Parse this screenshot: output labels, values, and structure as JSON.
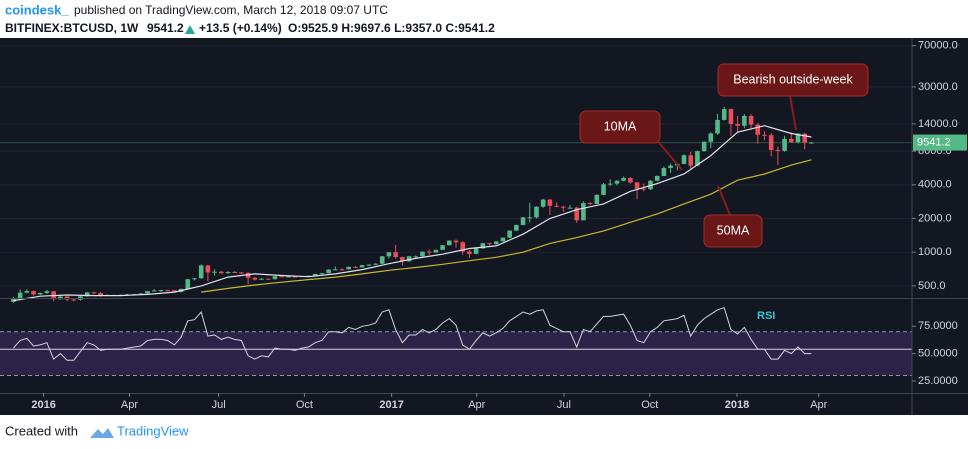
{
  "header": {
    "brand": "coindesk_",
    "published": "published on TradingView.com, March 12, 2018 09:07 UTC",
    "symbol": "BITFINEX:BTCUSD, 1W",
    "price": "9541.2",
    "change": "+13.5 (+0.14%)",
    "ohlc": "O:9525.9 H:9697.6 L:9357.0 C:9541.2"
  },
  "footer": {
    "created": "Created with",
    "brand": "TradingView"
  },
  "chart_data": [
    {
      "type": "candlestick",
      "ylog": true,
      "up_color": "#53b987",
      "down_color": "#eb4d5c",
      "xlim": [
        -2,
        134
      ],
      "ylim": [
        390,
        82000
      ],
      "yticks": [
        {
          "value": 500,
          "label": "500.0"
        },
        {
          "value": 1000,
          "label": "1000.0"
        },
        {
          "value": 2000,
          "label": "2000.0"
        },
        {
          "value": 4000,
          "label": "4000.0"
        },
        {
          "value": 8000,
          "label": "8000.0"
        },
        {
          "value": 14000,
          "label": "14000.0"
        },
        {
          "value": 30000,
          "label": "30000.0"
        },
        {
          "value": 70000,
          "label": "70000.0"
        }
      ],
      "grid": true,
      "price_label": {
        "value": 9541.2,
        "label": "9541.2"
      },
      "annotations": [
        "Bearish outside-week"
      ],
      "candles": [
        [
          360,
          400,
          355,
          390
        ],
        [
          390,
          465,
          385,
          435
        ],
        [
          435,
          465,
          430,
          450
        ],
        [
          450,
          455,
          410,
          420
        ],
        [
          420,
          436,
          415,
          432
        ],
        [
          432,
          460,
          425,
          448
        ],
        [
          448,
          450,
          365,
          380
        ],
        [
          380,
          410,
          376,
          402
        ],
        [
          402,
          405,
          365,
          378
        ],
        [
          378,
          390,
          365,
          376
        ],
        [
          376,
          408,
          370,
          404
        ],
        [
          404,
          442,
          400,
          438
        ],
        [
          438,
          444,
          420,
          432
        ],
        [
          432,
          440,
          400,
          412
        ],
        [
          412,
          420,
          405,
          415
        ],
        [
          415,
          418,
          410,
          415
        ],
        [
          415,
          420,
          411,
          416
        ],
        [
          416,
          425,
          412,
          420
        ],
        [
          420,
          426,
          415,
          422
        ],
        [
          422,
          430,
          418,
          428
        ],
        [
          428,
          452,
          425,
          450
        ],
        [
          450,
          468,
          445,
          455
        ],
        [
          455,
          462,
          442,
          459
        ],
        [
          459,
          462,
          448,
          457
        ],
        [
          457,
          460,
          436,
          441
        ],
        [
          441,
          475,
          438,
          470
        ],
        [
          470,
          578,
          468,
          574
        ],
        [
          574,
          590,
          560,
          585
        ],
        [
          585,
          780,
          580,
          762
        ],
        [
          762,
          770,
          550,
          660
        ],
        [
          660,
          705,
          620,
          670
        ],
        [
          670,
          682,
          640,
          650
        ],
        [
          650,
          676,
          645,
          666
        ],
        [
          666,
          680,
          650,
          660
        ],
        [
          660,
          665,
          640,
          655
        ],
        [
          655,
          660,
          520,
          590
        ],
        [
          590,
          600,
          560,
          570
        ],
        [
          570,
          586,
          565,
          580
        ],
        [
          580,
          585,
          570,
          575
        ],
        [
          575,
          615,
          570,
          610
        ],
        [
          610,
          612,
          600,
          607
        ],
        [
          607,
          612,
          600,
          608
        ],
        [
          608,
          612,
          596,
          603
        ],
        [
          603,
          615,
          600,
          612
        ],
        [
          612,
          620,
          608,
          617
        ],
        [
          617,
          642,
          612,
          640
        ],
        [
          640,
          652,
          630,
          650
        ],
        [
          650,
          705,
          645,
          700
        ],
        [
          700,
          745,
          690,
          703
        ],
        [
          703,
          720,
          690,
          702
        ],
        [
          702,
          745,
          700,
          740
        ],
        [
          740,
          752,
          725,
          733
        ],
        [
          733,
          770,
          730,
          766
        ],
        [
          766,
          780,
          755,
          775
        ],
        [
          775,
          795,
          770,
          790
        ],
        [
          790,
          925,
          785,
          920
        ],
        [
          920,
          1000,
          880,
          1000
        ],
        [
          1000,
          1160,
          880,
          905
        ],
        [
          905,
          910,
          760,
          830
        ],
        [
          830,
          930,
          820,
          920
        ],
        [
          920,
          935,
          880,
          920
        ],
        [
          920,
          1015,
          915,
          1012
        ],
        [
          1012,
          1060,
          940,
          995
        ],
        [
          995,
          1055,
          990,
          1050
        ],
        [
          1050,
          1160,
          1045,
          1155
        ],
        [
          1155,
          1280,
          1150,
          1270
        ],
        [
          1270,
          1300,
          1100,
          1230
        ],
        [
          1230,
          1250,
          950,
          1015
        ],
        [
          1015,
          1050,
          890,
          967
        ],
        [
          967,
          1090,
          960,
          1080
        ],
        [
          1080,
          1210,
          1075,
          1205
        ],
        [
          1205,
          1215,
          1150,
          1180
        ],
        [
          1180,
          1255,
          1170,
          1250
        ],
        [
          1250,
          1355,
          1245,
          1350
        ],
        [
          1350,
          1570,
          1340,
          1560
        ],
        [
          1560,
          1760,
          1550,
          1750
        ],
        [
          1750,
          2070,
          1740,
          2050
        ],
        [
          2050,
          2760,
          1850,
          2050
        ],
        [
          2050,
          2570,
          2000,
          2550
        ],
        [
          2550,
          3000,
          2500,
          2950
        ],
        [
          2950,
          2990,
          2150,
          2600
        ],
        [
          2600,
          2790,
          2520,
          2550
        ],
        [
          2550,
          2600,
          2300,
          2500
        ],
        [
          2500,
          2650,
          2480,
          2500
        ],
        [
          2500,
          2550,
          1830,
          1930
        ],
        [
          1930,
          2850,
          1920,
          2750
        ],
        [
          2750,
          2800,
          2620,
          2700
        ],
        [
          2700,
          3300,
          2690,
          3250
        ],
        [
          3250,
          4150,
          3240,
          4050
        ],
        [
          4050,
          4480,
          3900,
          4100
        ],
        [
          4100,
          4400,
          3950,
          4350
        ],
        [
          4350,
          4750,
          4300,
          4600
        ],
        [
          4600,
          4700,
          4100,
          4200
        ],
        [
          4200,
          4250,
          2970,
          3700
        ],
        [
          3700,
          4100,
          3500,
          3650
        ],
        [
          3650,
          4400,
          3600,
          4350
        ],
        [
          4350,
          4850,
          4300,
          4800
        ],
        [
          4800,
          5850,
          4780,
          5650
        ],
        [
          5650,
          6200,
          5100,
          5950
        ],
        [
          5950,
          6250,
          5400,
          6150
        ],
        [
          6150,
          7500,
          6100,
          7350
        ],
        [
          7350,
          7900,
          5600,
          5950
        ],
        [
          5950,
          8100,
          5900,
          8000
        ],
        [
          8000,
          9800,
          7900,
          9700
        ],
        [
          9700,
          11800,
          8500,
          11500
        ],
        [
          11500,
          17200,
          11200,
          15200
        ],
        [
          15200,
          19900,
          15000,
          19000
        ],
        [
          19000,
          19200,
          11000,
          14000
        ],
        [
          14000,
          16500,
          12000,
          13500
        ],
        [
          13500,
          17200,
          12800,
          16500
        ],
        [
          16500,
          17100,
          12800,
          13800
        ],
        [
          13800,
          14200,
          9300,
          11200
        ],
        [
          11200,
          12100,
          10000,
          11100
        ],
        [
          11100,
          11600,
          7200,
          8200
        ],
        [
          8200,
          8800,
          6000,
          8050
        ],
        [
          8050,
          11000,
          7900,
          10300
        ],
        [
          10300,
          11800,
          9500,
          9600
        ],
        [
          9600,
          11600,
          9400,
          11450
        ],
        [
          11450,
          11700,
          8300,
          9525.9
        ],
        [
          9525.9,
          9697.6,
          9357,
          9541.2
        ]
      ],
      "series": [
        {
          "name": "10MA",
          "color": "#e0e3eb",
          "x": [
            0,
            4,
            8,
            12,
            16,
            20,
            24,
            28,
            32,
            36,
            40,
            44,
            48,
            52,
            56,
            60,
            64,
            68,
            72,
            76,
            80,
            84,
            88,
            92,
            96,
            100,
            104,
            108,
            112,
            116,
            119
          ],
          "values": [
            370,
            405,
            415,
            410,
            410,
            420,
            440,
            500,
            600,
            640,
            620,
            605,
            640,
            700,
            790,
            880,
            960,
            1080,
            1140,
            1450,
            2000,
            2400,
            2700,
            3500,
            4100,
            5000,
            7300,
            11800,
            13500,
            11500,
            10700
          ]
        },
        {
          "name": "50MA",
          "color": "#c8b82a",
          "x": [
            28,
            32,
            36,
            40,
            44,
            48,
            52,
            56,
            60,
            64,
            68,
            72,
            76,
            80,
            84,
            88,
            92,
            96,
            100,
            104,
            108,
            112,
            116,
            119
          ],
          "values": [
            440,
            475,
            510,
            540,
            570,
            600,
            640,
            690,
            730,
            780,
            840,
            900,
            1000,
            1200,
            1350,
            1550,
            1850,
            2200,
            2700,
            3300,
            4400,
            5000,
            6000,
            6700
          ]
        }
      ]
    },
    {
      "type": "line",
      "xlim": [
        -2,
        134
      ],
      "ylim": [
        14,
        99
      ],
      "yticks": [
        {
          "value": 25,
          "label": "25.0000"
        },
        {
          "value": 50,
          "label": "50.0000"
        },
        {
          "value": 75,
          "label": "75.0000"
        }
      ],
      "xticks": [
        {
          "value": 4.5,
          "label": "2016"
        },
        {
          "value": 17.3,
          "label": "Apr"
        },
        {
          "value": 30.6,
          "label": "Jul"
        },
        {
          "value": 43.4,
          "label": "Oct"
        },
        {
          "value": 56.4,
          "label": "2017"
        },
        {
          "value": 69.1,
          "label": "Apr"
        },
        {
          "value": 82.1,
          "label": "Jul"
        },
        {
          "value": 94.9,
          "label": "Oct"
        },
        {
          "value": 107.9,
          "label": "2018"
        },
        {
          "value": 120.1,
          "label": "Apr"
        }
      ],
      "levels": [
        70,
        30
      ],
      "band_color": "#2c2348",
      "midline": 54,
      "series": [
        {
          "name": "RSI",
          "color": "#d1d4dc",
          "values": [
            55,
            62,
            64,
            57,
            58,
            60,
            45,
            50,
            44,
            44,
            52,
            60,
            58,
            53,
            54,
            54,
            54,
            55,
            56,
            57,
            62,
            63,
            63,
            62,
            58,
            65,
            80,
            81,
            88,
            66,
            67,
            63,
            65,
            63,
            62,
            48,
            45,
            48,
            47,
            55,
            54,
            54,
            53,
            55,
            56,
            60,
            62,
            70,
            70,
            69,
            74,
            72,
            75,
            76,
            78,
            88,
            90,
            72,
            60,
            67,
            67,
            72,
            69,
            72,
            78,
            82,
            76,
            58,
            54,
            62,
            69,
            66,
            69,
            73,
            80,
            84,
            88,
            86,
            89,
            90,
            76,
            73,
            70,
            70,
            56,
            72,
            70,
            77,
            84,
            84,
            85,
            86,
            76,
            62,
            60,
            70,
            74,
            80,
            81,
            82,
            85,
            66,
            76,
            82,
            86,
            90,
            92,
            72,
            68,
            74,
            63,
            54,
            54,
            45,
            45,
            53,
            50,
            56,
            50,
            50
          ]
        }
      ]
    }
  ]
}
